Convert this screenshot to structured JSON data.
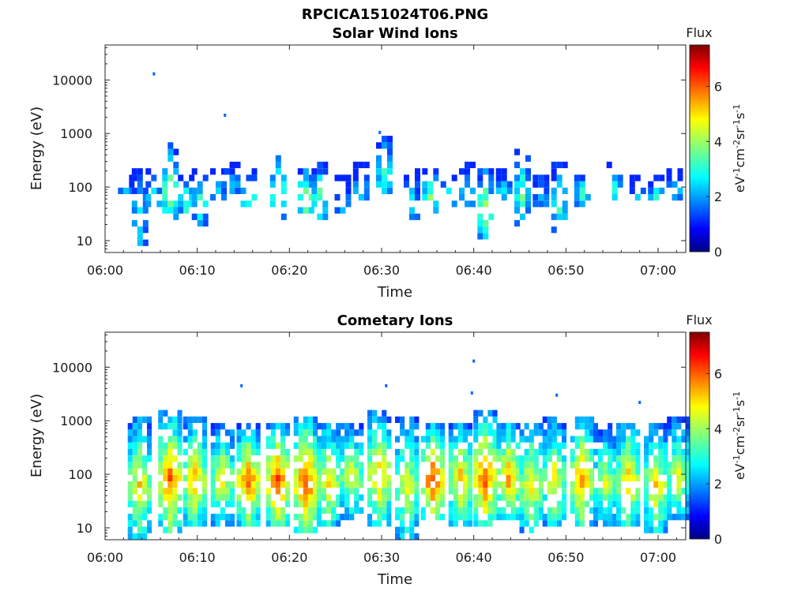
{
  "figure": {
    "title": "RPCICA151024T06.PNG"
  },
  "chart_data": [
    {
      "type": "heatmap",
      "title": "Solar Wind Ions",
      "xlabel": "Time",
      "ylabel": "Energy (eV)",
      "xlim": [
        "06:00",
        "07:03"
      ],
      "ylim": [
        6,
        45000
      ],
      "yscale": "log",
      "xticks": [
        "06:00",
        "06:10",
        "06:20",
        "06:30",
        "06:40",
        "06:50",
        "07:00"
      ],
      "yticks": [
        "10",
        "100",
        "1000",
        "10000"
      ],
      "grid": false,
      "colorbar": {
        "title": "Flux",
        "label": "eV-1cm-2sr-1s-1",
        "range": [
          0,
          7.5
        ],
        "ticks": [
          "0",
          "2",
          "4",
          "6"
        ],
        "colormap": "jet"
      },
      "bursts": [
        {
          "t": "06:02",
          "lo": 50,
          "hi": 190,
          "peak": 2.5
        },
        {
          "t": "06:03.5",
          "lo": 7,
          "hi": 200,
          "peak": 3.0
        },
        {
          "t": "06:05",
          "lo": 40,
          "hi": 200,
          "peak": 3.2
        },
        {
          "t": "06:06.8",
          "lo": 18,
          "hi": 700,
          "peak": 4.2
        },
        {
          "t": "06:08.5",
          "lo": 30,
          "hi": 180,
          "peak": 3.5
        },
        {
          "t": "06:10",
          "lo": 20,
          "hi": 250,
          "peak": 3.3
        },
        {
          "t": "06:12",
          "lo": 60,
          "hi": 220,
          "peak": 2.5
        },
        {
          "t": "06:13.5",
          "lo": 60,
          "hi": 320,
          "peak": 2.8
        },
        {
          "t": "06:15.3",
          "lo": 40,
          "hi": 200,
          "peak": 4.0
        },
        {
          "t": "06:18.5",
          "lo": 25,
          "hi": 350,
          "peak": 4.4
        },
        {
          "t": "06:21.5",
          "lo": 30,
          "hi": 250,
          "peak": 4.6
        },
        {
          "t": "06:23",
          "lo": 22,
          "hi": 300,
          "peak": 3.8
        },
        {
          "t": "06:25.5",
          "lo": 30,
          "hi": 150,
          "peak": 2.5
        },
        {
          "t": "06:27.5",
          "lo": 50,
          "hi": 260,
          "peak": 2.6
        },
        {
          "t": "06:30",
          "lo": 70,
          "hi": 900,
          "peak": 3.6
        },
        {
          "t": "06:33",
          "lo": 25,
          "hi": 230,
          "peak": 2.6
        },
        {
          "t": "06:35",
          "lo": 30,
          "hi": 250,
          "peak": 3.8
        },
        {
          "t": "06:37",
          "lo": 40,
          "hi": 220,
          "peak": 3.4
        },
        {
          "t": "06:39",
          "lo": 40,
          "hi": 280,
          "peak": 3.0
        },
        {
          "t": "06:41",
          "lo": 12,
          "hi": 250,
          "peak": 4.2
        },
        {
          "t": "06:43",
          "lo": 60,
          "hi": 220,
          "peak": 3.0
        },
        {
          "t": "06:45",
          "lo": 20,
          "hi": 550,
          "peak": 3.6
        },
        {
          "t": "06:47",
          "lo": 40,
          "hi": 240,
          "peak": 2.6
        },
        {
          "t": "06:49",
          "lo": 15,
          "hi": 300,
          "peak": 3.4
        },
        {
          "t": "06:51.5",
          "lo": 40,
          "hi": 230,
          "peak": 3.3
        },
        {
          "t": "06:55",
          "lo": 50,
          "hi": 300,
          "peak": 3.0
        },
        {
          "t": "06:57.5",
          "lo": 60,
          "hi": 180,
          "peak": 2.4
        },
        {
          "t": "06:59.5",
          "lo": 50,
          "hi": 180,
          "peak": 3.2
        },
        {
          "t": "07:01.5",
          "lo": 60,
          "hi": 200,
          "peak": 3.0
        }
      ],
      "isolated_points": [
        {
          "t": "06:05.3",
          "e": 13000
        },
        {
          "t": "06:13",
          "e": 2200
        },
        {
          "t": "06:29.8",
          "e": 1050
        }
      ]
    },
    {
      "type": "heatmap",
      "title": "Cometary Ions",
      "xlabel": "Time",
      "ylabel": "Energy (eV)",
      "xlim": [
        "06:00",
        "07:03"
      ],
      "ylim": [
        6,
        45000
      ],
      "yscale": "log",
      "xticks": [
        "06:00",
        "06:10",
        "06:20",
        "06:30",
        "06:40",
        "06:50",
        "07:00"
      ],
      "yticks": [
        "10",
        "100",
        "1000",
        "10000"
      ],
      "grid": false,
      "colorbar": {
        "title": "Flux",
        "label": "eV-1cm-2sr-1s-1",
        "range": [
          0,
          7.5
        ],
        "ticks": [
          "0",
          "2",
          "4",
          "6"
        ],
        "colormap": "jet"
      },
      "bursts": [
        {
          "t": "06:03.5",
          "lo": 6,
          "hi": 1200,
          "peak": 5.0
        },
        {
          "t": "06:06.8",
          "lo": 8,
          "hi": 1500,
          "peak": 6.0
        },
        {
          "t": "06:09.5",
          "lo": 10,
          "hi": 1200,
          "peak": 5.3
        },
        {
          "t": "06:12.5",
          "lo": 12,
          "hi": 1000,
          "peak": 4.8
        },
        {
          "t": "06:15.3",
          "lo": 12,
          "hi": 800,
          "peak": 6.0
        },
        {
          "t": "06:18.5",
          "lo": 10,
          "hi": 1000,
          "peak": 6.2
        },
        {
          "t": "06:21.5",
          "lo": 8,
          "hi": 1200,
          "peak": 6.3
        },
        {
          "t": "06:24",
          "lo": 10,
          "hi": 1000,
          "peak": 5.0
        },
        {
          "t": "06:26.5",
          "lo": 15,
          "hi": 1000,
          "peak": 4.6
        },
        {
          "t": "06:29.5",
          "lo": 12,
          "hi": 1500,
          "peak": 5.3
        },
        {
          "t": "06:32.5",
          "lo": 6,
          "hi": 1200,
          "peak": 4.7
        },
        {
          "t": "06:35.3",
          "lo": 15,
          "hi": 800,
          "peak": 6.3
        },
        {
          "t": "06:38.3",
          "lo": 12,
          "hi": 1000,
          "peak": 5.3
        },
        {
          "t": "06:41",
          "lo": 10,
          "hi": 1500,
          "peak": 6.1
        },
        {
          "t": "06:43.5",
          "lo": 15,
          "hi": 1000,
          "peak": 5.6
        },
        {
          "t": "06:46",
          "lo": 8,
          "hi": 1000,
          "peak": 5.0
        },
        {
          "t": "06:48.5",
          "lo": 10,
          "hi": 1200,
          "peak": 4.8
        },
        {
          "t": "06:51.5",
          "lo": 10,
          "hi": 1200,
          "peak": 5.6
        },
        {
          "t": "06:54",
          "lo": 12,
          "hi": 800,
          "peak": 4.5
        },
        {
          "t": "06:56.5",
          "lo": 10,
          "hi": 1000,
          "peak": 5.3
        },
        {
          "t": "06:59.5",
          "lo": 8,
          "hi": 1000,
          "peak": 5.0
        },
        {
          "t": "07:02",
          "lo": 15,
          "hi": 1200,
          "peak": 4.5
        }
      ],
      "isolated_points": [
        {
          "t": "06:14.8",
          "e": 4500
        },
        {
          "t": "06:30.5",
          "e": 4500
        },
        {
          "t": "06:40",
          "e": 13000
        },
        {
          "t": "06:39.8",
          "e": 3300
        },
        {
          "t": "06:49",
          "e": 3000
        },
        {
          "t": "06:58",
          "e": 2200
        }
      ]
    }
  ]
}
